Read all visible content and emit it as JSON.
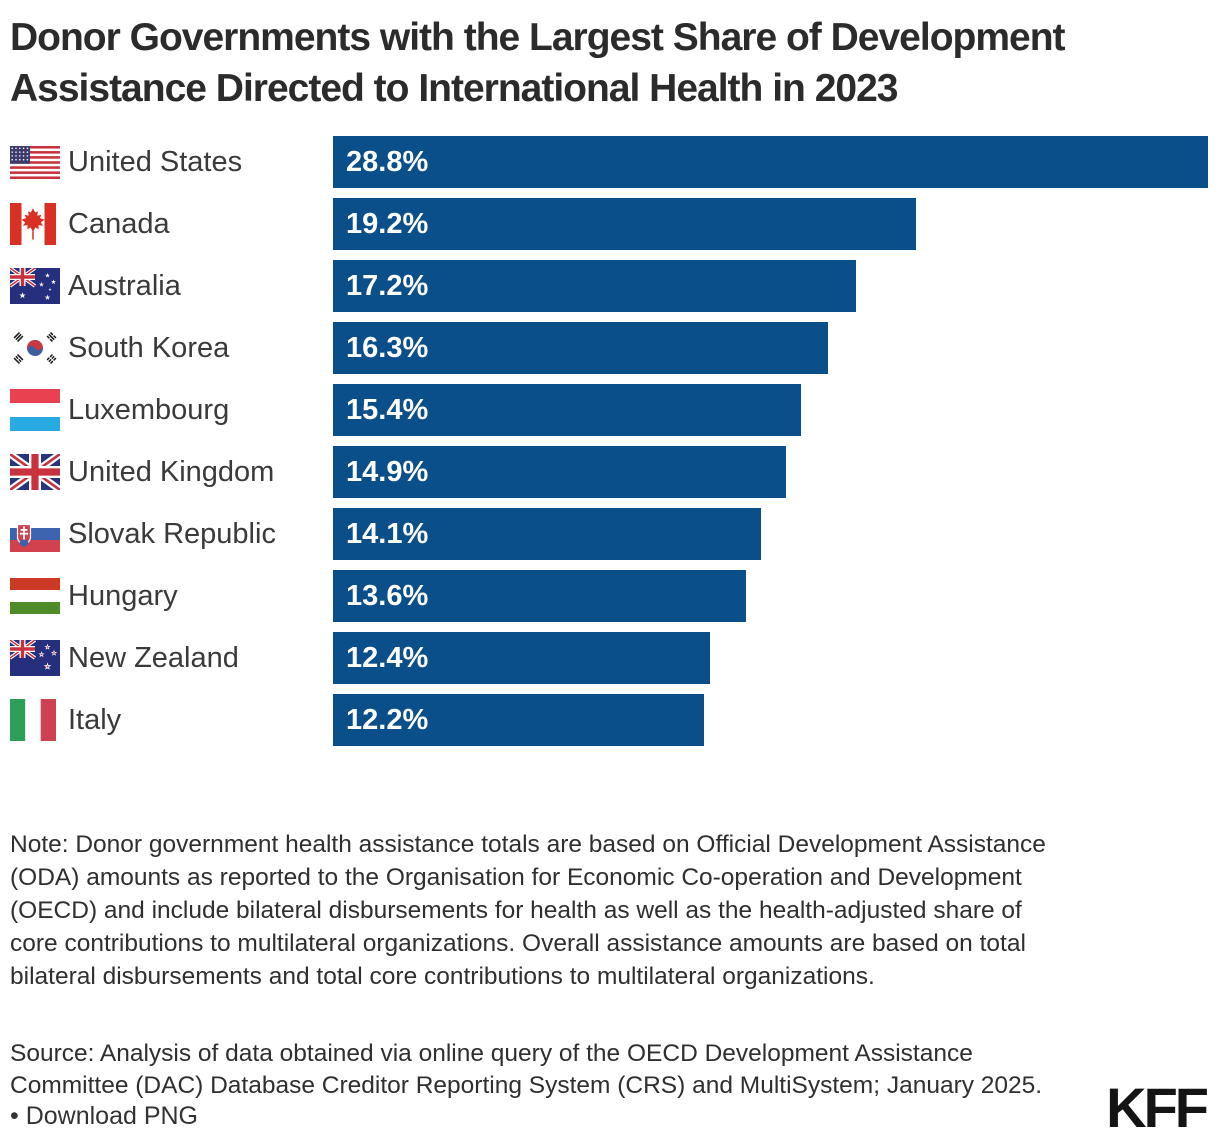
{
  "header": {
    "title": "Donor Governments with the Largest Share of Development\nAssistance Directed to International Health in 2023"
  },
  "chart_data": {
    "type": "bar",
    "orientation": "horizontal",
    "title": "Donor Governments with the Largest Share of Development Assistance Directed to International Health in 2023",
    "categories": [
      "United States",
      "Canada",
      "Australia",
      "South Korea",
      "Luxembourg",
      "United Kingdom",
      "Slovak Republic",
      "Hungary",
      "New Zealand",
      "Italy"
    ],
    "values": [
      28.8,
      19.2,
      17.2,
      16.3,
      15.4,
      14.9,
      14.1,
      13.6,
      12.4,
      12.2
    ],
    "value_labels": [
      "28.8%",
      "19.2%",
      "17.2%",
      "16.3%",
      "15.4%",
      "14.9%",
      "14.1%",
      "13.6%",
      "12.4%",
      "12.2%"
    ],
    "xlim": [
      0,
      28.8
    ],
    "xlabel": "",
    "ylabel": "",
    "grid": false,
    "legend": "none",
    "bar_color": "#0B4F8A",
    "value_label_color": "#ffffff",
    "rows": [
      {
        "country": "United States",
        "flag": "us",
        "value": 28.8,
        "label": "28.8%"
      },
      {
        "country": "Canada",
        "flag": "ca",
        "value": 19.2,
        "label": "19.2%"
      },
      {
        "country": "Australia",
        "flag": "au",
        "value": 17.2,
        "label": "17.2%"
      },
      {
        "country": "South Korea",
        "flag": "kr",
        "value": 16.3,
        "label": "16.3%"
      },
      {
        "country": "Luxembourg",
        "flag": "lu",
        "value": 15.4,
        "label": "15.4%"
      },
      {
        "country": "United Kingdom",
        "flag": "gb",
        "value": 14.9,
        "label": "14.9%"
      },
      {
        "country": "Slovak Republic",
        "flag": "sk",
        "value": 14.1,
        "label": "14.1%"
      },
      {
        "country": "Hungary",
        "flag": "hu",
        "value": 13.6,
        "label": "13.6%"
      },
      {
        "country": "New Zealand",
        "flag": "nz",
        "value": 12.4,
        "label": "12.4%"
      },
      {
        "country": "Italy",
        "flag": "it",
        "value": 12.2,
        "label": "12.2%"
      }
    ]
  },
  "notes": {
    "note": "Note: Donor government health assistance totals are based on Official Development Assistance (ODA) amounts as reported to the Organisation for Economic Co-operation and Development (OECD) and include bilateral disbursements for health as well as the health-adjusted share of core contributions to multilateral organizations. Overall assistance amounts are based on total bilateral disbursements and total core contributions to multilateral organizations.",
    "source": "Source: Analysis of data obtained via online query of the OECD Development Assistance Committee (DAC) Database Creditor Reporting System (CRS) and MultiSystem; January 2025."
  },
  "footer": {
    "download": "• Download PNG",
    "logo": "KFF"
  }
}
